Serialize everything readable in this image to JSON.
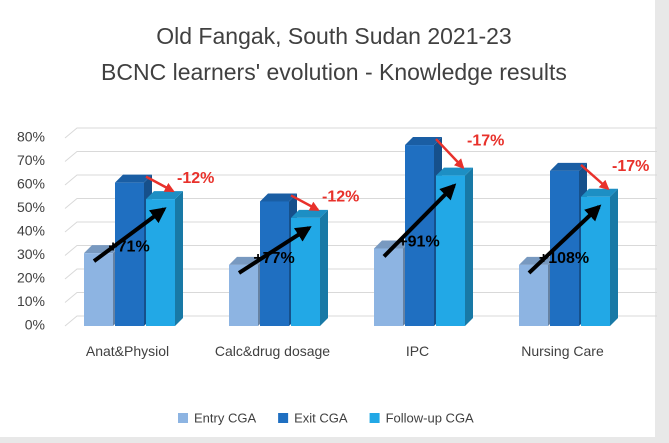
{
  "chart_data": {
    "type": "bar3d",
    "title": "Old Fangak, South Sudan 2021-23",
    "subtitle": "BCNC learners' evolution - Knowledge results",
    "categories": [
      "Anat&Physiol",
      "Calc&drug dosage",
      "IPC",
      "Nursing Care"
    ],
    "series": [
      {
        "name": "Entry CGA",
        "color": "#8db4e2",
        "values": [
          31,
          26,
          33,
          26
        ]
      },
      {
        "name": "Exit CGA",
        "color": "#1f6fc1",
        "values": [
          61,
          53,
          77,
          66
        ]
      },
      {
        "name": "Follow-up CGA",
        "color": "#22a8e6",
        "values": [
          54,
          46,
          64,
          55
        ]
      }
    ],
    "growth_labels": [
      "+71%",
      "+77%",
      "+91%",
      "+108%"
    ],
    "drop_labels": [
      "-12%",
      "-12%",
      "-17%",
      "-17%"
    ],
    "ylim": [
      0,
      80
    ],
    "yticks": [
      {
        "value": 0,
        "label": "0%"
      },
      {
        "value": 10,
        "label": "10%"
      },
      {
        "value": 20,
        "label": "20%"
      },
      {
        "value": 30,
        "label": "30%"
      },
      {
        "value": 40,
        "label": "40%"
      },
      {
        "value": 50,
        "label": "50%"
      },
      {
        "value": 60,
        "label": "60%"
      },
      {
        "value": 70,
        "label": "70%"
      },
      {
        "value": 80,
        "label": "80%"
      }
    ],
    "grid": true,
    "legend": "bottom"
  }
}
